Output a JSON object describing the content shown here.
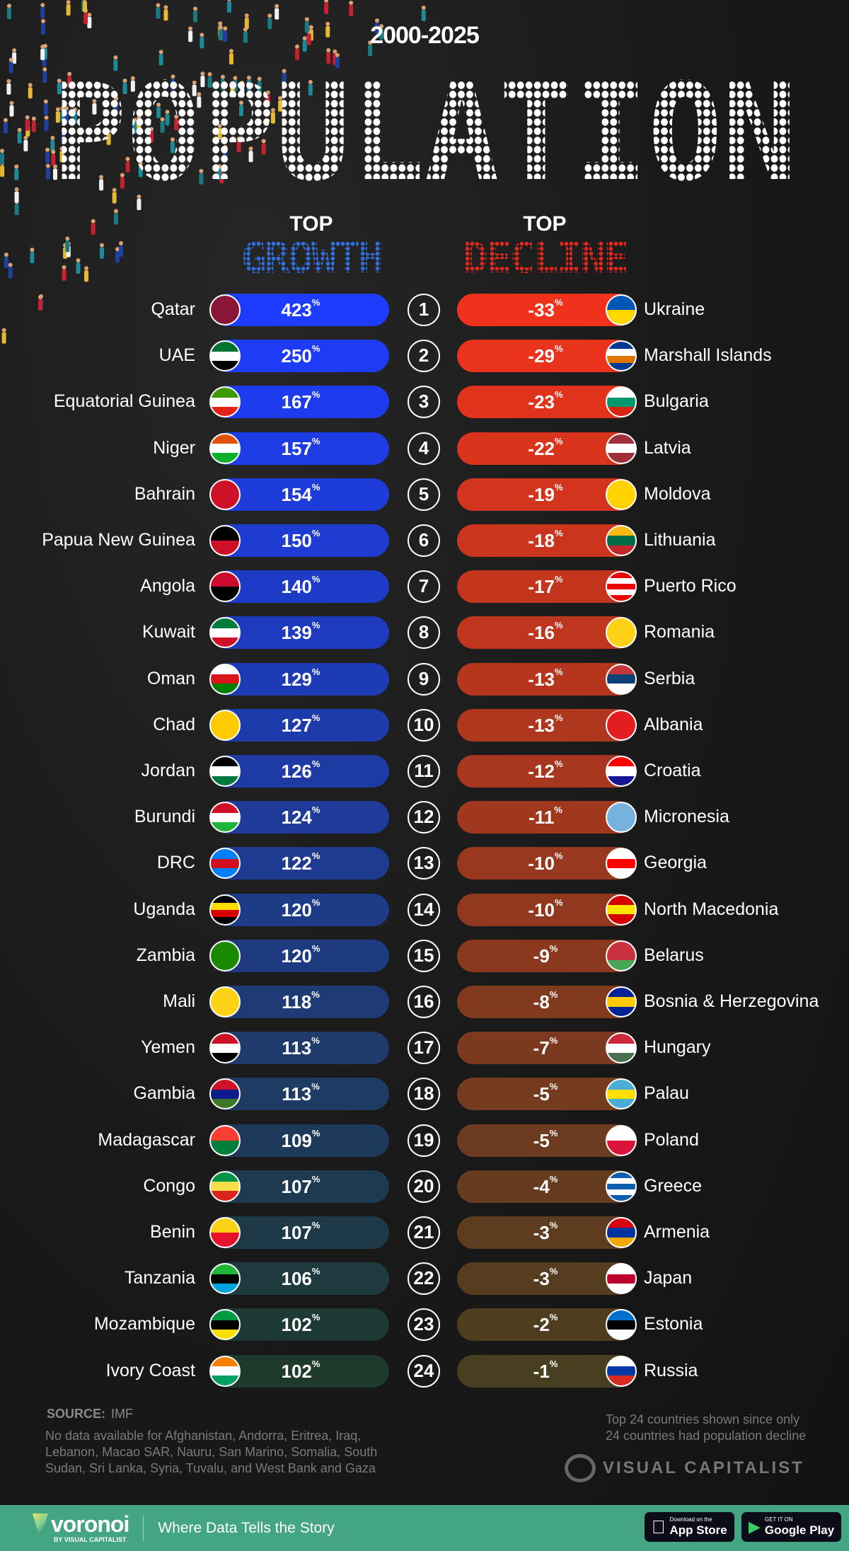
{
  "header": {
    "years": "2000-2025",
    "title": "POPULATION",
    "growth_top": "TOP",
    "growth_label": "GROWTH",
    "decline_top": "TOP",
    "decline_label": "DECLINE",
    "growth_color": "#2a5bd8",
    "decline_color": "#e8321e"
  },
  "chart_data": {
    "type": "bar",
    "unit": "%",
    "growth": [
      {
        "rank": "1",
        "country": "Qatar",
        "value": 423,
        "flag": [
          "#8a1538",
          "#8a1538"
        ]
      },
      {
        "rank": "2",
        "country": "UAE",
        "value": 250,
        "flag": [
          "#00732f",
          "#ffffff",
          "#000000"
        ]
      },
      {
        "rank": "3",
        "country": "Equatorial Guinea",
        "value": 167,
        "flag": [
          "#3e9a00",
          "#ffffff",
          "#e32118"
        ]
      },
      {
        "rank": "4",
        "country": "Niger",
        "value": 157,
        "flag": [
          "#e05206",
          "#ffffff",
          "#0db02b"
        ]
      },
      {
        "rank": "5",
        "country": "Bahrain",
        "value": 154,
        "flag": [
          "#ce1126",
          "#ce1126"
        ]
      },
      {
        "rank": "6",
        "country": "Papua New Guinea",
        "value": 150,
        "flag": [
          "#000000",
          "#ce1126"
        ]
      },
      {
        "rank": "7",
        "country": "Angola",
        "value": 140,
        "flag": [
          "#cc092f",
          "#000000"
        ]
      },
      {
        "rank": "8",
        "country": "Kuwait",
        "value": 139,
        "flag": [
          "#007a3d",
          "#ffffff",
          "#ce1126"
        ]
      },
      {
        "rank": "9",
        "country": "Oman",
        "value": 129,
        "flag": [
          "#ffffff",
          "#db161b",
          "#008000"
        ]
      },
      {
        "rank": "10",
        "country": "Chad",
        "value": 127,
        "flag": [
          "#fecb00",
          "#fecb00"
        ]
      },
      {
        "rank": "11",
        "country": "Jordan",
        "value": 126,
        "flag": [
          "#000000",
          "#ffffff",
          "#007a3d"
        ]
      },
      {
        "rank": "12",
        "country": "Burundi",
        "value": 124,
        "flag": [
          "#ce1126",
          "#ffffff",
          "#1eb53a"
        ]
      },
      {
        "rank": "13",
        "country": "DRC",
        "value": 122,
        "flag": [
          "#007fff",
          "#ce1021",
          "#007fff"
        ]
      },
      {
        "rank": "14",
        "country": "Uganda",
        "value": 120,
        "flag": [
          "#000000",
          "#fcdc04",
          "#d90000",
          "#000000"
        ]
      },
      {
        "rank": "15",
        "country": "Zambia",
        "value": 120,
        "flag": [
          "#198a00",
          "#198a00"
        ]
      },
      {
        "rank": "16",
        "country": "Mali",
        "value": 118,
        "flag": [
          "#fcd116",
          "#fcd116"
        ]
      },
      {
        "rank": "17",
        "country": "Yemen",
        "value": 113,
        "flag": [
          "#ce1126",
          "#ffffff",
          "#000000"
        ]
      },
      {
        "rank": "18",
        "country": "Gambia",
        "value": 113,
        "flag": [
          "#ce1126",
          "#0c1c8c",
          "#3a7728"
        ]
      },
      {
        "rank": "19",
        "country": "Madagascar",
        "value": 109,
        "flag": [
          "#fc3d32",
          "#007e3a"
        ]
      },
      {
        "rank": "20",
        "country": "Congo",
        "value": 107,
        "flag": [
          "#009543",
          "#fbde4a",
          "#dc241f"
        ]
      },
      {
        "rank": "21",
        "country": "Benin",
        "value": 107,
        "flag": [
          "#fcd116",
          "#e8112d"
        ]
      },
      {
        "rank": "22",
        "country": "Tanzania",
        "value": 106,
        "flag": [
          "#1eb53a",
          "#000000",
          "#00a3dd"
        ]
      },
      {
        "rank": "23",
        "country": "Mozambique",
        "value": 102,
        "flag": [
          "#009a44",
          "#000000",
          "#fce100"
        ]
      },
      {
        "rank": "24",
        "country": "Ivory Coast",
        "value": 102,
        "flag": [
          "#f77f00",
          "#ffffff",
          "#009e60"
        ]
      }
    ],
    "decline": [
      {
        "country": "Ukraine",
        "value": -33,
        "flag": [
          "#0057b7",
          "#ffd700"
        ]
      },
      {
        "country": "Marshall Islands",
        "value": -29,
        "flag": [
          "#003893",
          "#ffffff",
          "#dd7500",
          "#003893"
        ]
      },
      {
        "country": "Bulgaria",
        "value": -23,
        "flag": [
          "#ffffff",
          "#00966e",
          "#d62612"
        ]
      },
      {
        "country": "Latvia",
        "value": -22,
        "flag": [
          "#9e3039",
          "#ffffff",
          "#9e3039"
        ]
      },
      {
        "country": "Moldova",
        "value": -19,
        "flag": [
          "#ffd200",
          "#ffd200"
        ]
      },
      {
        "country": "Lithuania",
        "value": -18,
        "flag": [
          "#fdb913",
          "#006a44",
          "#c1272d"
        ]
      },
      {
        "country": "Puerto Rico",
        "value": -17,
        "flag": [
          "#ed0000",
          "#ffffff",
          "#ed0000",
          "#ffffff",
          "#ed0000"
        ]
      },
      {
        "country": "Romania",
        "value": -16,
        "flag": [
          "#fcd116",
          "#fcd116"
        ]
      },
      {
        "country": "Serbia",
        "value": -13,
        "flag": [
          "#c6363c",
          "#0c4076",
          "#ffffff"
        ]
      },
      {
        "country": "Albania",
        "value": -13,
        "flag": [
          "#e41e20",
          "#e41e20"
        ]
      },
      {
        "country": "Croatia",
        "value": -12,
        "flag": [
          "#ff0000",
          "#ffffff",
          "#171796"
        ]
      },
      {
        "country": "Micronesia",
        "value": -11,
        "flag": [
          "#75b2dd",
          "#75b2dd"
        ]
      },
      {
        "country": "Georgia",
        "value": -10,
        "flag": [
          "#ffffff",
          "#ff0000",
          "#ffffff"
        ]
      },
      {
        "country": "North Macedonia",
        "value": -10,
        "flag": [
          "#d20000",
          "#ffe600",
          "#d20000"
        ]
      },
      {
        "country": "Belarus",
        "value": -9,
        "flag": [
          "#c8313e",
          "#c8313e",
          "#4aa657"
        ]
      },
      {
        "country": "Bosnia & Herzegovina",
        "value": -8,
        "flag": [
          "#002395",
          "#fecb00",
          "#002395"
        ]
      },
      {
        "country": "Hungary",
        "value": -7,
        "flag": [
          "#ce2939",
          "#ffffff",
          "#477050"
        ]
      },
      {
        "country": "Palau",
        "value": -5,
        "flag": [
          "#4aadd6",
          "#ffde00",
          "#4aadd6"
        ]
      },
      {
        "country": "Poland",
        "value": -5,
        "flag": [
          "#ffffff",
          "#dc143c"
        ]
      },
      {
        "country": "Greece",
        "value": -4,
        "flag": [
          "#0d5eaf",
          "#ffffff",
          "#0d5eaf",
          "#ffffff",
          "#0d5eaf"
        ]
      },
      {
        "country": "Armenia",
        "value": -3,
        "flag": [
          "#d90012",
          "#0033a0",
          "#f2a800"
        ]
      },
      {
        "country": "Japan",
        "value": -3,
        "flag": [
          "#ffffff",
          "#bc002d",
          "#ffffff"
        ]
      },
      {
        "country": "Estonia",
        "value": -2,
        "flag": [
          "#0072ce",
          "#000000",
          "#ffffff"
        ]
      },
      {
        "country": "Russia",
        "value": -1,
        "flag": [
          "#ffffff",
          "#0039a6",
          "#d52b1e"
        ]
      }
    ]
  },
  "footer": {
    "source_label": "SOURCE:",
    "source": "IMF",
    "note": "No data available for Afghanistan, Andorra, Eritrea, Iraq, Lebanon, Macao SAR, Nauru, San Marino, Somalia, South Sudan, Sri Lanka, Syria, Tuvalu, and West Bank and Gaza",
    "note2_line1": "Top 24 countries shown since only",
    "note2_line2": "24 countries had population decline",
    "brand": "VISUAL CAPITALIST",
    "voronoi": "voronoi",
    "voronoi_by": "BY VISUAL CAPITALIST",
    "tagline": "Where Data Tells the Story",
    "appstore_small": "Download on the",
    "appstore": "App Store",
    "google_small": "GET IT ON",
    "google": "Google Play",
    "band_color": "#44a583"
  }
}
